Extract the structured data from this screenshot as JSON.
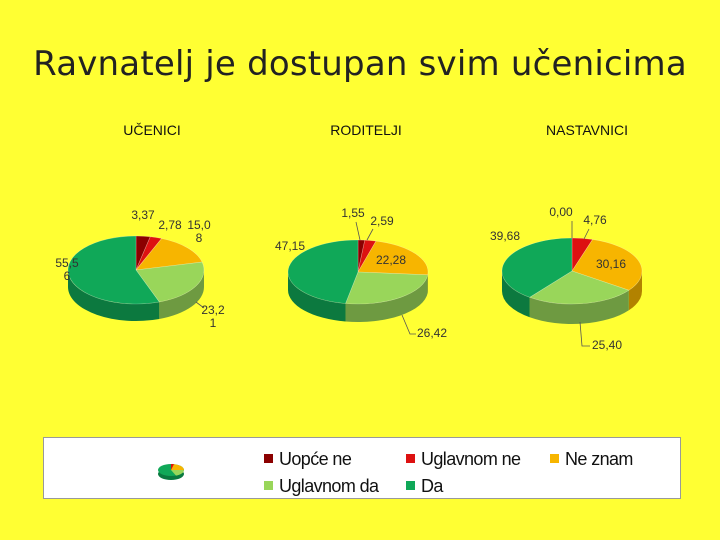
{
  "slide": {
    "title": "Ravnatelj je dostupan svim učenicima"
  },
  "colors": {
    "Uopće ne": "#8b0000",
    "Uglavnom ne": "#dd1111",
    "Ne znam": "#f7b500",
    "Uglavnom da": "#99d65a",
    "Da": "#10a858"
  },
  "chart_data": [
    {
      "type": "pie",
      "title": "UČENICI",
      "labels": [
        "Uopće ne",
        "Uglavnom ne",
        "Ne znam",
        "Uglavnom da",
        "Da"
      ],
      "values": [
        3.37,
        2.78,
        15.08,
        23.21,
        55.56
      ],
      "value_labels": [
        "3,37",
        "2,78",
        "15,08",
        "23,21",
        "55,56"
      ]
    },
    {
      "type": "pie",
      "title": "RODITELJI",
      "labels": [
        "Uopće ne",
        "Uglavnom ne",
        "Ne znam",
        "Uglavnom da",
        "Da"
      ],
      "values": [
        1.55,
        2.59,
        22.28,
        26.42,
        47.15
      ],
      "value_labels": [
        "1,55",
        "2,59",
        "22,28",
        "26,42",
        "47,15"
      ]
    },
    {
      "type": "pie",
      "title": "NASTAVNICI",
      "labels": [
        "Uopće ne",
        "Uglavnom ne",
        "Ne znam",
        "Uglavnom da",
        "Da"
      ],
      "values": [
        0.0,
        4.76,
        30.16,
        25.4,
        39.68
      ],
      "value_labels": [
        "0,00",
        "4,76",
        "30,16",
        "25,40",
        "39,68"
      ]
    }
  ],
  "legend": {
    "items": [
      "Uopće ne",
      "Uglavnom ne",
      "Ne znam",
      "Uglavnom da",
      "Da"
    ]
  }
}
